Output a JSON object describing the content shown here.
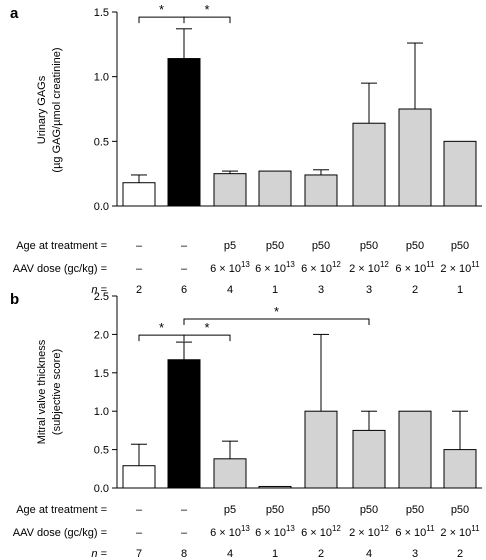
{
  "chart_data": [
    {
      "type": "bar",
      "panel_label": "a",
      "ylabel": [
        "Urinary GAGs",
        "(µg GAG/µmol creatinine)"
      ],
      "ylim": [
        0,
        1.5
      ],
      "yticks": [
        "0.0",
        "0.5",
        "1.0",
        "1.5"
      ],
      "values": [
        0.18,
        1.14,
        0.25,
        0.27,
        0.24,
        0.64,
        0.75,
        0.5
      ],
      "errors": [
        0.06,
        0.23,
        0.02,
        0.0,
        0.04,
        0.31,
        0.51,
        0.0
      ],
      "bar_colors": [
        "#ffffff",
        "#000000",
        "#d3d3d3",
        "#d3d3d3",
        "#d3d3d3",
        "#d3d3d3",
        "#d3d3d3",
        "#d3d3d3"
      ],
      "significance": [
        {
          "from": 0,
          "to": 1,
          "label": "*",
          "y": 1.46
        },
        {
          "from": 1,
          "to": 2,
          "label": "*",
          "y": 1.46
        }
      ],
      "table": {
        "row_labels": [
          "Age at treatment =",
          "AAV dose (gc/kg) =",
          "n ="
        ],
        "age": [
          "–",
          "–",
          "p5",
          "p50",
          "p50",
          "p50",
          "p50",
          "p50"
        ],
        "dose_base": [
          "–",
          "–",
          "6 × 10",
          "6 × 10",
          "6 × 10",
          "2 × 10",
          "6 × 10",
          "2 × 10"
        ],
        "dose_exp": [
          "",
          "",
          "13",
          "13",
          "12",
          "12",
          "11",
          "11"
        ],
        "n": [
          "2",
          "6",
          "4",
          "1",
          "3",
          "3",
          "2",
          "1"
        ]
      }
    },
    {
      "type": "bar",
      "panel_label": "b",
      "ylabel": [
        "Mitral valve thickness",
        "(subjective score)"
      ],
      "ylim": [
        0,
        2.5
      ],
      "yticks": [
        "0.0",
        "0.5",
        "1.0",
        "1.5",
        "2.0",
        "2.5"
      ],
      "values": [
        0.29,
        1.67,
        0.38,
        0.02,
        1.0,
        0.75,
        1.0,
        0.5
      ],
      "errors": [
        0.28,
        0.23,
        0.23,
        0.0,
        1.0,
        0.25,
        0.0,
        0.5
      ],
      "bar_colors": [
        "#ffffff",
        "#000000",
        "#d3d3d3",
        "#d3d3d3",
        "#d3d3d3",
        "#d3d3d3",
        "#d3d3d3",
        "#d3d3d3"
      ],
      "significance": [
        {
          "from": 0,
          "to": 1,
          "label": "*",
          "y": 1.99
        },
        {
          "from": 1,
          "to": 2,
          "label": "*",
          "y": 1.99
        },
        {
          "from": 1,
          "to": 5,
          "label": "*",
          "y": 2.2
        }
      ],
      "table": {
        "row_labels": [
          "Age at treatment =",
          "AAV dose (gc/kg) =",
          "n ="
        ],
        "age": [
          "–",
          "–",
          "p5",
          "p50",
          "p50",
          "p50",
          "p50",
          "p50"
        ],
        "dose_base": [
          "–",
          "–",
          "6 × 10",
          "6 × 10",
          "6 × 10",
          "2 × 10",
          "6 × 10",
          "2 × 10"
        ],
        "dose_exp": [
          "",
          "",
          "13",
          "13",
          "12",
          "12",
          "11",
          "11"
        ],
        "n": [
          "7",
          "8",
          "4",
          "1",
          "2",
          "4",
          "3",
          "2"
        ]
      }
    }
  ]
}
